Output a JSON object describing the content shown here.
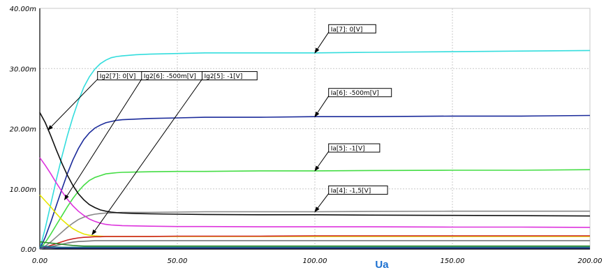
{
  "chart_data": {
    "type": "line",
    "xlabel": "Ua",
    "ylabel": "",
    "xlim": [
      0,
      200
    ],
    "ylim": [
      0,
      40
    ],
    "grid": true,
    "x_ticks": [
      "0.00",
      "50.00",
      "100.00",
      "150.00",
      "200.00"
    ],
    "y_ticks": [
      "0.00",
      "10.00m",
      "20.00m",
      "30.00m",
      "40.00m"
    ],
    "x": [
      0,
      2,
      4,
      6,
      8,
      10,
      12,
      14,
      16,
      18,
      20,
      22,
      24,
      26,
      28,
      30,
      35,
      40,
      50,
      60,
      80,
      100,
      120,
      150,
      175,
      200
    ],
    "series": [
      {
        "color": "#33dddd",
        "values": [
          0,
          3.5,
          7.5,
          11.5,
          15.3,
          18.8,
          21.9,
          24.6,
          26.9,
          28.6,
          29.9,
          30.8,
          31.4,
          31.8,
          32.0,
          32.1,
          32.3,
          32.4,
          32.5,
          32.6,
          32.6,
          32.6,
          32.7,
          32.8,
          32.9,
          33.0
        ]
      },
      {
        "color": "#1a2a9a",
        "values": [
          0,
          2.0,
          4.5,
          7.2,
          9.9,
          12.5,
          14.8,
          16.7,
          18.2,
          19.3,
          20.1,
          20.6,
          21.0,
          21.2,
          21.4,
          21.5,
          21.6,
          21.7,
          21.8,
          21.9,
          21.9,
          22.0,
          22.0,
          22.1,
          22.1,
          22.2
        ]
      },
      {
        "color": "#44dd44",
        "values": [
          0,
          1.1,
          2.5,
          4.0,
          5.5,
          7.0,
          8.4,
          9.6,
          10.6,
          11.4,
          11.9,
          12.2,
          12.5,
          12.6,
          12.7,
          12.75,
          12.8,
          12.85,
          12.9,
          12.9,
          13.0,
          13.0,
          13.05,
          13.1,
          13.1,
          13.2
        ]
      },
      {
        "color": "#888888",
        "values": [
          0,
          0.5,
          1.2,
          2.0,
          2.8,
          3.6,
          4.3,
          4.9,
          5.3,
          5.6,
          5.8,
          5.9,
          6.0,
          6.0,
          6.05,
          6.1,
          6.1,
          6.1,
          6.15,
          6.2,
          6.2,
          6.2,
          6.25,
          6.3,
          6.3,
          6.3
        ]
      },
      {
        "color": "#111111",
        "values": [
          22.7,
          21.0,
          18.8,
          16.5,
          14.3,
          12.3,
          10.6,
          9.2,
          8.2,
          7.4,
          6.9,
          6.5,
          6.3,
          6.15,
          6.05,
          6.0,
          5.9,
          5.85,
          5.8,
          5.75,
          5.7,
          5.7,
          5.65,
          5.6,
          5.55,
          5.5
        ]
      },
      {
        "color": "#dd33dd",
        "values": [
          15.2,
          13.9,
          12.5,
          11.0,
          9.6,
          8.3,
          7.2,
          6.3,
          5.6,
          5.0,
          4.6,
          4.3,
          4.1,
          4.0,
          3.95,
          3.9,
          3.85,
          3.8,
          3.75,
          3.75,
          3.7,
          3.7,
          3.7,
          3.65,
          3.65,
          3.6
        ]
      },
      {
        "color": "#e6e600",
        "values": [
          9.0,
          8.0,
          7.0,
          5.9,
          4.9,
          4.1,
          3.4,
          2.9,
          2.5,
          2.3,
          2.2,
          2.15,
          2.1,
          2.1,
          2.1,
          2.1,
          2.1,
          2.1,
          2.1,
          2.1,
          2.1,
          2.1,
          2.1,
          2.1,
          2.1,
          2.1
        ]
      },
      {
        "color": "#cc2222",
        "values": [
          0,
          0.3,
          0.6,
          0.9,
          1.2,
          1.5,
          1.7,
          1.85,
          1.95,
          2.0,
          2.05,
          2.05,
          2.1,
          2.1,
          2.1,
          2.1,
          2.1,
          2.1,
          2.15,
          2.15,
          2.15,
          2.2,
          2.2,
          2.2,
          2.2,
          2.2
        ]
      },
      {
        "color": "#777777",
        "values": [
          0,
          0.2,
          0.4,
          0.6,
          0.8,
          1.0,
          1.15,
          1.25,
          1.3,
          1.35,
          1.4,
          1.4,
          1.4,
          1.4,
          1.4,
          1.4,
          1.4,
          1.4,
          1.4,
          1.4,
          1.4,
          1.4,
          1.4,
          1.4,
          1.4,
          1.4
        ]
      },
      {
        "color": "#2a8a2a",
        "values": [
          1.2,
          1.1,
          1.0,
          0.9,
          0.8,
          0.7,
          0.6,
          0.55,
          0.5,
          0.5,
          0.5,
          0.5,
          0.5,
          0.5,
          0.5,
          0.5,
          0.5,
          0.5,
          0.5,
          0.5,
          0.5,
          0.5,
          0.5,
          0.5,
          0.5,
          0.5
        ]
      },
      {
        "color": "#1f7a8c",
        "values": [
          0.5,
          0.45,
          0.4,
          0.35,
          0.3,
          0.3,
          0.3,
          0.3,
          0.3,
          0.3,
          0.3,
          0.3,
          0.3,
          0.3,
          0.3,
          0.3,
          0.3,
          0.3,
          0.3,
          0.3,
          0.3,
          0.3,
          0.3,
          0.3,
          0.3,
          0.3
        ]
      },
      {
        "color": "#223388",
        "values": [
          0.2,
          0.2,
          0.2,
          0.15,
          0.15,
          0.15,
          0.15,
          0.15,
          0.15,
          0.15,
          0.15,
          0.15,
          0.15,
          0.15,
          0.15,
          0.15,
          0.15,
          0.15,
          0.15,
          0.15,
          0.15,
          0.15,
          0.15,
          0.15,
          0.15,
          0.15
        ]
      }
    ],
    "annotations": [
      {
        "text": "Ia[7]: 0[V]",
        "at": [
          100,
          32.6
        ],
        "pos": [
          105,
          37.3
        ]
      },
      {
        "text": "Ia[6]: -500m[V]",
        "at": [
          100,
          22.0
        ],
        "pos": [
          105,
          26.7
        ]
      },
      {
        "text": "Ia[5]: -1[V]",
        "at": [
          100,
          13.0
        ],
        "pos": [
          105,
          17.5
        ]
      },
      {
        "text": "Ia[4]: -1,5[V]",
        "at": [
          100,
          6.2
        ],
        "pos": [
          105,
          10.5
        ]
      },
      {
        "text": "Ig2[7]: 0[V]",
        "at": [
          3,
          19.8
        ],
        "pos": [
          21,
          29.5
        ]
      },
      {
        "text": "Ig2[6]: -500m[V]",
        "at": [
          9,
          8.2
        ],
        "pos": [
          37,
          29.5
        ]
      },
      {
        "text": "Ig2[5]: -1[V]",
        "at": [
          19,
          2.4
        ],
        "pos": [
          59,
          29.5
        ]
      }
    ]
  }
}
